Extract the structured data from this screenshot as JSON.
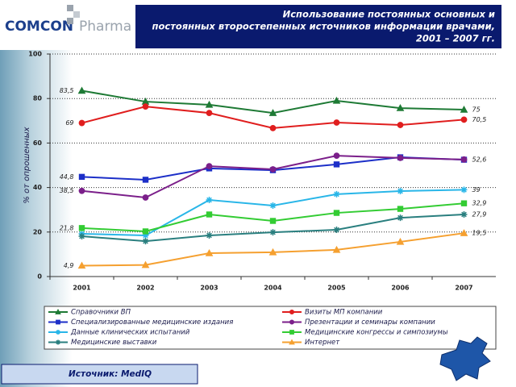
{
  "logo": {
    "brand": "COMCON",
    "product": "Pharma"
  },
  "source": "Источник: MedIQ",
  "chart_data": {
    "type": "line",
    "title_lines": [
      "Использование постоянных основных и",
      "постоянных второстепенных источников информации врачами,",
      "2001 – 2007 гг."
    ],
    "ylabel": "% от опрошенных",
    "categories": [
      "2001",
      "2002",
      "2003",
      "2004",
      "2005",
      "2006",
      "2007"
    ],
    "ylim": [
      0,
      100
    ],
    "yticks": [
      0,
      20,
      40,
      60,
      80,
      100
    ],
    "grid": true,
    "series": [
      {
        "name": "Справочники ВП",
        "color": "#1e7a35",
        "marker": "triangle",
        "values": [
          83.5,
          78.6,
          77.2,
          73.5,
          79,
          75.7,
          75
        ],
        "value_labels": [
          "83,5",
          null,
          null,
          null,
          null,
          null,
          "75"
        ]
      },
      {
        "name": "Визиты МП компании",
        "color": "#e01e1e",
        "marker": "circle",
        "values": [
          69,
          76.4,
          73.5,
          66.7,
          69.2,
          68.1,
          70.5
        ],
        "value_labels": [
          "69",
          null,
          null,
          null,
          null,
          null,
          "70,5"
        ]
      },
      {
        "name": "Специализированные медицинские издания",
        "color": "#1c2fc8",
        "marker": "square",
        "values": [
          44.8,
          43.5,
          48.6,
          47.8,
          50.4,
          53.6,
          52.5
        ],
        "value_labels": [
          "44,8",
          null,
          null,
          null,
          null,
          null,
          null
        ]
      },
      {
        "name": "Презентации и семинары компании",
        "color": "#7b1f8a",
        "marker": "circle",
        "values": [
          38.5,
          35.5,
          49.6,
          48.2,
          54.3,
          53.3,
          52.6
        ],
        "value_labels": [
          "38,5",
          null,
          null,
          null,
          null,
          null,
          "52,6"
        ]
      },
      {
        "name": "Данные клинических испытаний",
        "color": "#29b6e8",
        "marker": "cross",
        "values": [
          19.2,
          18.5,
          34.4,
          31.9,
          37,
          38.4,
          39
        ],
        "value_labels": [
          null,
          null,
          null,
          null,
          null,
          null,
          "39"
        ]
      },
      {
        "name": "Медицинские конгрессы и симпозиумы",
        "color": "#33cc33",
        "marker": "square",
        "values": [
          21.8,
          20.3,
          27.9,
          25,
          28.6,
          30.4,
          32.9
        ],
        "value_labels": [
          "21,8",
          null,
          null,
          null,
          null,
          null,
          "32,9"
        ]
      },
      {
        "name": "Медицинские выставки",
        "color": "#2a7f7f",
        "marker": "cross",
        "values": [
          18.1,
          15.9,
          18.5,
          19.9,
          21,
          26.4,
          27.9
        ],
        "value_labels": [
          null,
          null,
          null,
          null,
          null,
          null,
          "27,9"
        ]
      },
      {
        "name": "Интернет",
        "color": "#f5a030",
        "marker": "triangle",
        "values": [
          4.9,
          5.2,
          10.5,
          10.9,
          12,
          15.6,
          19.5
        ],
        "value_labels": [
          "4,9",
          null,
          null,
          null,
          null,
          null,
          "19,5"
        ]
      }
    ]
  }
}
